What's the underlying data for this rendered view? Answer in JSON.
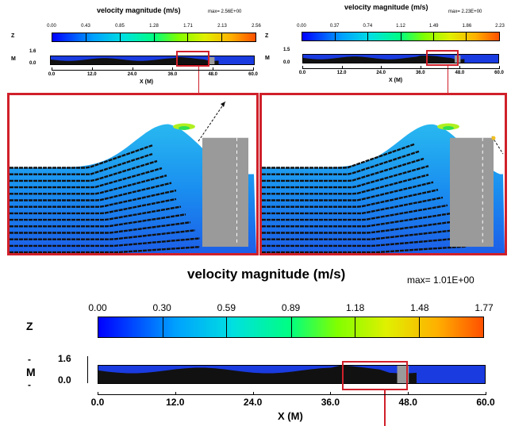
{
  "top_left": {
    "title": "velocity magnitude (m/s)",
    "max_label": "max= 2.56E+00",
    "colorbar_ticks": [
      "0.00",
      "0.43",
      "0.85",
      "1.28",
      "1.71",
      "2.13",
      "2.56"
    ],
    "z_label": "Z",
    "m_label": "M",
    "y_ticks": [
      "1.6",
      "0.0"
    ],
    "x_ticks": [
      "0.0",
      "12.0",
      "24.0",
      "36.0",
      "48.0",
      "60.0"
    ],
    "x_label": "X (M)"
  },
  "top_right": {
    "title": "velocity magnitude (m/s)",
    "max_label": "max= 2.23E+00",
    "colorbar_ticks": [
      "0.00",
      "0.37",
      "0.74",
      "1.12",
      "1.49",
      "1.86",
      "2.23"
    ],
    "z_label": "Z",
    "m_label": "M",
    "y_ticks": [
      "1.5",
      "0.0"
    ],
    "x_ticks": [
      "0.0",
      "12.0",
      "24.0",
      "36.0",
      "48.0",
      "60.0"
    ],
    "x_label": "X (M)"
  },
  "bottom": {
    "title": "velocity magnitude (m/s)",
    "max_label": "max= 1.01E+00",
    "colorbar_ticks": [
      "0.00",
      "0.30",
      "0.59",
      "0.89",
      "1.18",
      "1.48",
      "1.77"
    ],
    "z_label": "Z",
    "dash": "-",
    "m_label": "M",
    "y_ticks": [
      "1.6",
      "0.0"
    ],
    "x_ticks": [
      "0.0",
      "12.0",
      "24.0",
      "36.0",
      "48.0",
      "60.0"
    ],
    "x_label": "X (M)"
  },
  "colors": {
    "frame_red": "#d0202a",
    "water": "#1a3be0",
    "structure": "#9a9a9a"
  },
  "chart_data": [
    {
      "type": "heatmap",
      "title": "velocity magnitude (m/s)",
      "colorbar_range": [
        0.0,
        2.56
      ],
      "colorbar_ticks": [
        0.0,
        0.43,
        0.85,
        1.28,
        1.71,
        2.13,
        2.56
      ],
      "max": "2.56E+00",
      "xlabel": "X (M)",
      "xlim": [
        0.0,
        60.0
      ],
      "ylabel": "Z (M)",
      "ylim": [
        0.0,
        1.6
      ]
    },
    {
      "type": "heatmap",
      "title": "velocity magnitude (m/s)",
      "colorbar_range": [
        0.0,
        2.23
      ],
      "colorbar_ticks": [
        0.0,
        0.37,
        0.74,
        1.12,
        1.49,
        1.86,
        2.23
      ],
      "max": "2.23E+00",
      "xlabel": "X (M)",
      "xlim": [
        0.0,
        60.0
      ],
      "ylabel": "Z (M)",
      "ylim": [
        0.0,
        1.5
      ]
    },
    {
      "type": "heatmap",
      "title": "velocity magnitude (m/s)",
      "colorbar_range": [
        0.0,
        1.77
      ],
      "colorbar_ticks": [
        0.0,
        0.3,
        0.59,
        0.89,
        1.18,
        1.48,
        1.77
      ],
      "max": "1.01E+00",
      "xlabel": "X (M)",
      "xlim": [
        0.0,
        60.0
      ],
      "ylabel": "Z (M)",
      "ylim": [
        0.0,
        1.6
      ]
    }
  ]
}
